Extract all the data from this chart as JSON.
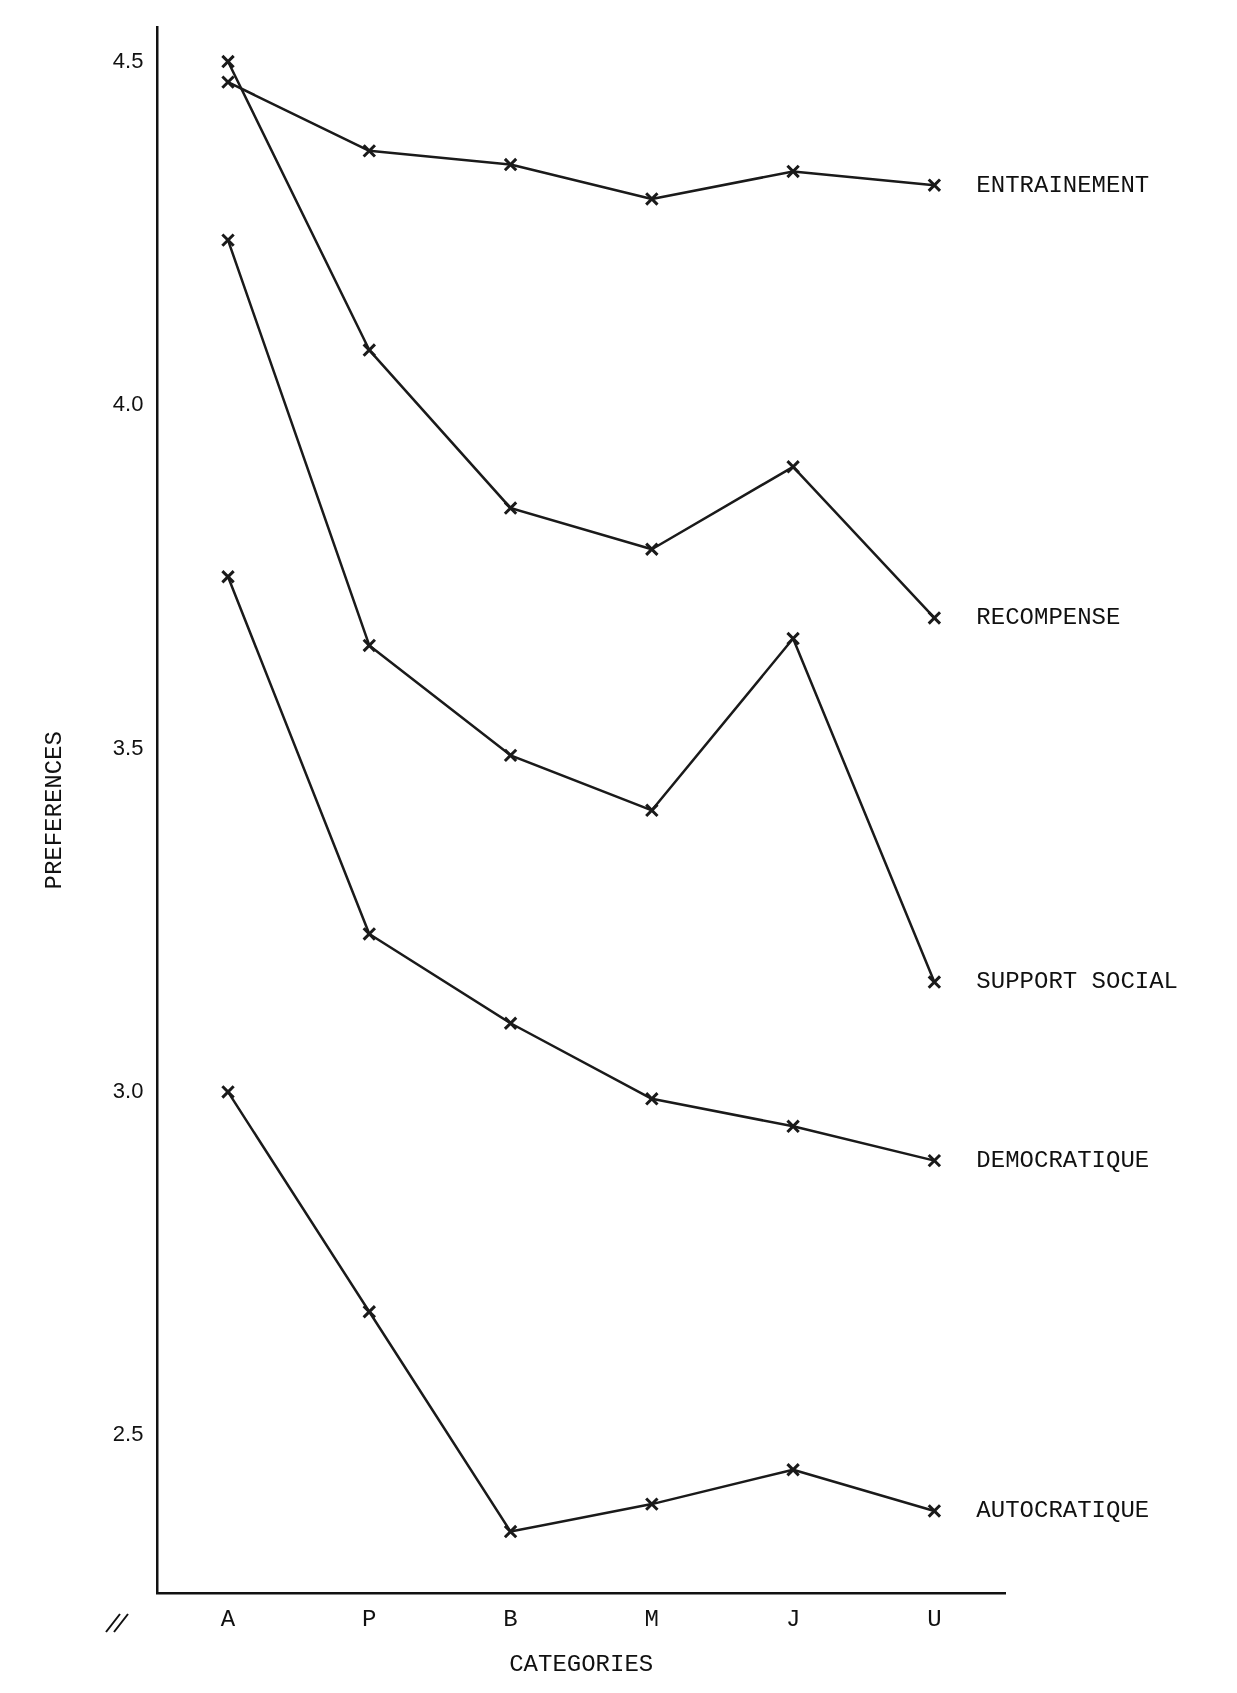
{
  "chart_data": {
    "type": "line",
    "xlabel": "CATEGORIES",
    "ylabel": "PREFERENCES",
    "categories": [
      "A",
      "P",
      "B",
      "M",
      "J",
      "U"
    ],
    "series": [
      {
        "name": "ENTRAINEMENT",
        "color": "#1a1a1a",
        "values": [
          4.47,
          4.37,
          4.35,
          4.3,
          4.34,
          4.32
        ]
      },
      {
        "name": "RECOMPENSE",
        "color": "#1a1a1a",
        "values": [
          4.5,
          4.08,
          3.85,
          3.79,
          3.91,
          3.69
        ]
      },
      {
        "name": "SUPPORT SOCIAL",
        "color": "#1a1a1a",
        "values": [
          4.24,
          3.65,
          3.49,
          3.41,
          3.66,
          3.16
        ]
      },
      {
        "name": "DEMOCRATIQUE",
        "color": "#1a1a1a",
        "values": [
          3.75,
          3.23,
          3.1,
          2.99,
          2.95,
          2.9
        ]
      },
      {
        "name": "AUTOCRATIQUE",
        "color": "#1a1a1a",
        "values": [
          3.0,
          2.68,
          2.36,
          2.4,
          2.45,
          2.39
        ]
      }
    ],
    "ylim": [
      2.27,
      4.55
    ],
    "yticks": [
      {
        "value": 2.5,
        "label": "2.5"
      },
      {
        "value": 3,
        "label": "3.0"
      },
      {
        "value": 3.5,
        "label": "3.5"
      },
      {
        "value": 4,
        "label": "4.0"
      },
      {
        "value": 4.5,
        "label": "4.5"
      }
    ],
    "grid": false,
    "legend": false,
    "marker": "cross",
    "line_style": "solid"
  }
}
